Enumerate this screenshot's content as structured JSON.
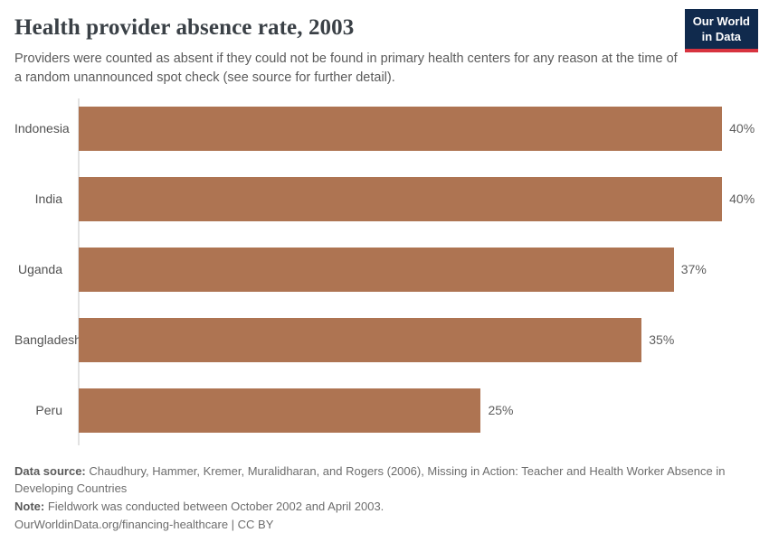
{
  "header": {
    "title": "Health provider absence rate, 2003",
    "subtitle": "Providers were counted as absent if they could not be found in primary health centers for any reason at the time of a random unannounced spot check (see source for further detail).",
    "logo": {
      "line1": "Our World",
      "line2": "in Data",
      "bg_color": "#102a4d",
      "accent_color": "#d7333f"
    }
  },
  "chart_data": {
    "type": "bar",
    "orientation": "horizontal",
    "title": "Health provider absence rate, 2003",
    "categories": [
      "Indonesia",
      "India",
      "Uganda",
      "Bangladesh",
      "Peru"
    ],
    "values": [
      40,
      40,
      37,
      35,
      25
    ],
    "value_labels": [
      "40%",
      "40%",
      "37%",
      "35%",
      "25%"
    ],
    "unit": "%",
    "xlim": [
      0,
      40
    ],
    "grid": false,
    "bar_color": "#AE7452",
    "axis_color": "#e2e2e2"
  },
  "footer": {
    "data_source_label": "Data source:",
    "data_source_text": "Chaudhury, Hammer, Kremer, Muralidharan, and Rogers (2006), Missing in Action: Teacher and Health Worker Absence in Developing Countries",
    "note_label": "Note:",
    "note_text": "Fieldwork was conducted between October 2002 and April 2003.",
    "attribution": "OurWorldinData.org/financing-healthcare | CC BY"
  }
}
